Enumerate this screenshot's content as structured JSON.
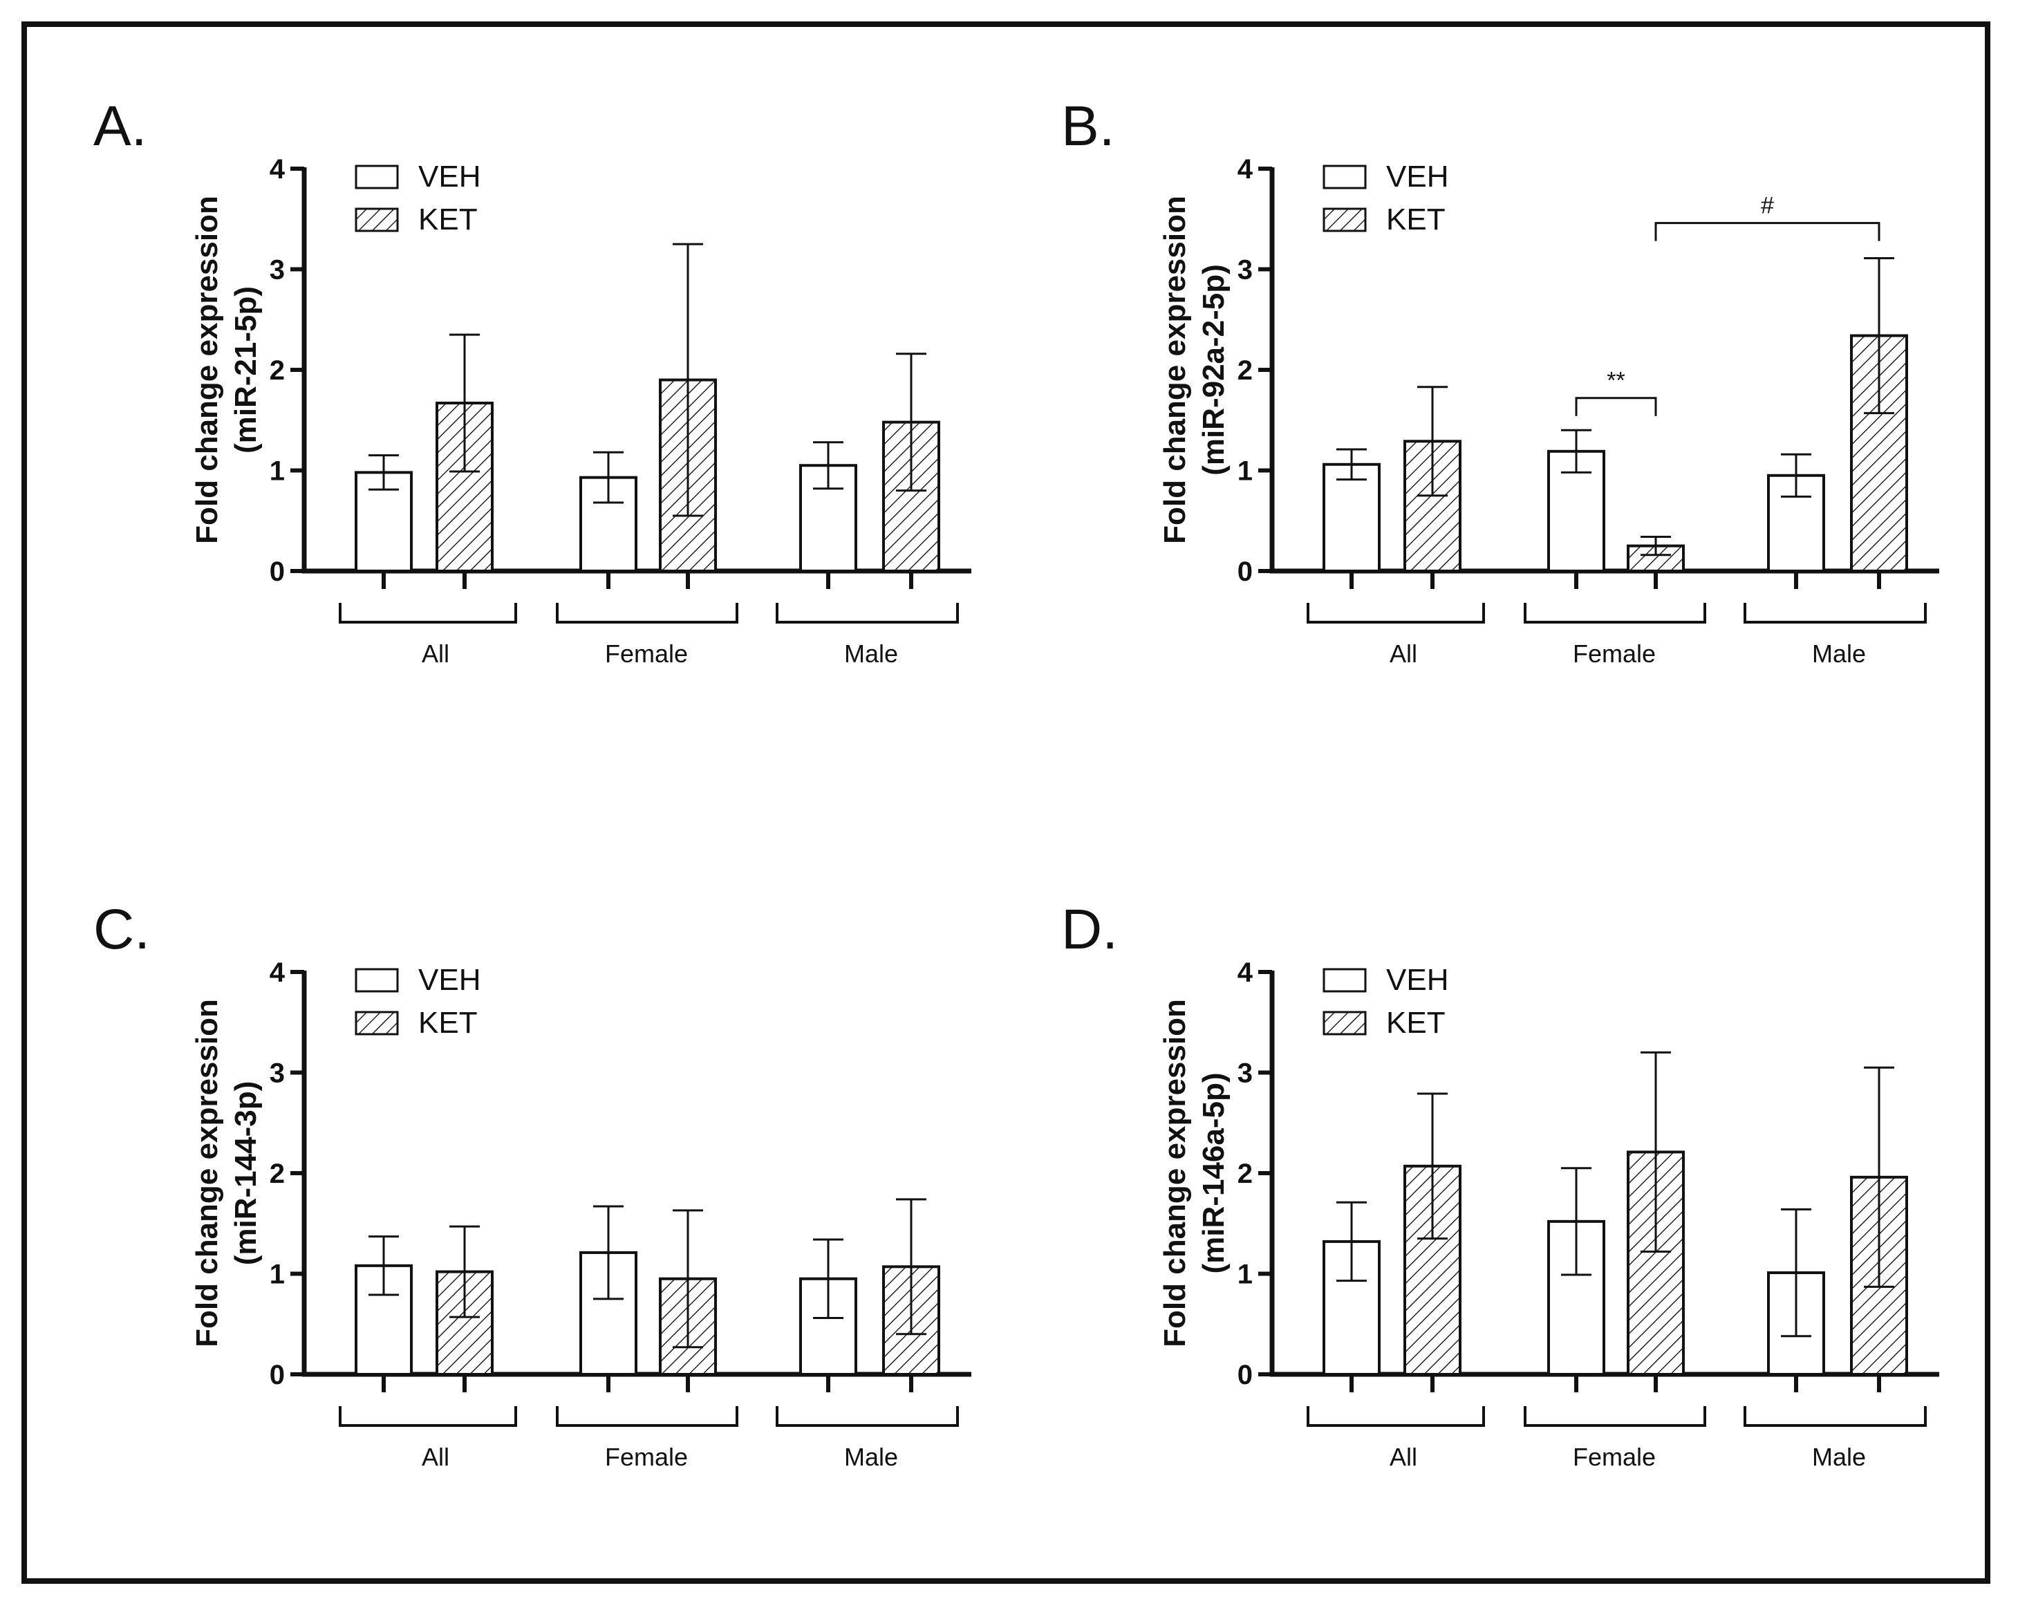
{
  "figure": {
    "legend": {
      "veh": "VEH",
      "ket": "KET"
    },
    "ylabel_line1": "Fold change expression",
    "y_ticks": [
      0,
      1,
      2,
      3,
      4
    ],
    "ylim": [
      0,
      4
    ],
    "groups": [
      "All",
      "Female",
      "Male"
    ]
  },
  "chart_data": [
    {
      "type": "bar",
      "panel": "A.",
      "title": "A.",
      "ylabel": "Fold change expression (miR-21-5p)",
      "ylabel_gene": "(miR-21-5p)",
      "categories": [
        "All",
        "Female",
        "Male"
      ],
      "ylim": [
        0,
        4
      ],
      "series": [
        {
          "name": "VEH",
          "values": [
            0.98,
            0.93,
            1.05
          ],
          "errors": [
            0.17,
            0.25,
            0.23
          ]
        },
        {
          "name": "KET",
          "values": [
            1.67,
            1.9,
            1.48
          ],
          "errors": [
            0.68,
            1.35,
            0.68
          ]
        }
      ],
      "annotations": []
    },
    {
      "type": "bar",
      "panel": "B.",
      "title": "B.",
      "ylabel": "Fold change expression (miR-92a-2-5p)",
      "ylabel_gene": "(miR-92a-2-5p)",
      "categories": [
        "All",
        "Female",
        "Male"
      ],
      "ylim": [
        0,
        4
      ],
      "series": [
        {
          "name": "VEH",
          "values": [
            1.06,
            1.19,
            0.95
          ],
          "errors": [
            0.15,
            0.21,
            0.21
          ]
        },
        {
          "name": "KET",
          "values": [
            1.29,
            0.25,
            2.34
          ],
          "errors": [
            0.54,
            0.09,
            0.77
          ]
        }
      ],
      "annotations": [
        {
          "text": "**",
          "from": [
            1,
            0
          ],
          "to": [
            1,
            1
          ],
          "y": 1.72
        },
        {
          "text": "#",
          "from": [
            1,
            1
          ],
          "to": [
            2,
            1
          ],
          "y": 3.46
        }
      ]
    },
    {
      "type": "bar",
      "panel": "C.",
      "title": "C.",
      "ylabel": "Fold change expression (miR-144-3p)",
      "ylabel_gene": "(miR-144-3p)",
      "categories": [
        "All",
        "Female",
        "Male"
      ],
      "ylim": [
        0,
        4
      ],
      "series": [
        {
          "name": "VEH",
          "values": [
            1.08,
            1.21,
            0.95
          ],
          "errors": [
            0.29,
            0.46,
            0.39
          ]
        },
        {
          "name": "KET",
          "values": [
            1.02,
            0.95,
            1.07
          ],
          "errors": [
            0.45,
            0.68,
            0.67
          ]
        }
      ],
      "annotations": []
    },
    {
      "type": "bar",
      "panel": "D.",
      "title": "D.",
      "ylabel": "Fold change expression (miR-146a-5p)",
      "ylabel_gene": "(miR-146a-5p)",
      "categories": [
        "All",
        "Female",
        "Male"
      ],
      "ylim": [
        0,
        4
      ],
      "series": [
        {
          "name": "VEH",
          "values": [
            1.32,
            1.52,
            1.01
          ],
          "errors": [
            0.39,
            0.53,
            0.63
          ]
        },
        {
          "name": "KET",
          "values": [
            2.07,
            2.21,
            1.96
          ],
          "errors": [
            0.72,
            0.99,
            1.09
          ]
        }
      ],
      "annotations": []
    }
  ]
}
